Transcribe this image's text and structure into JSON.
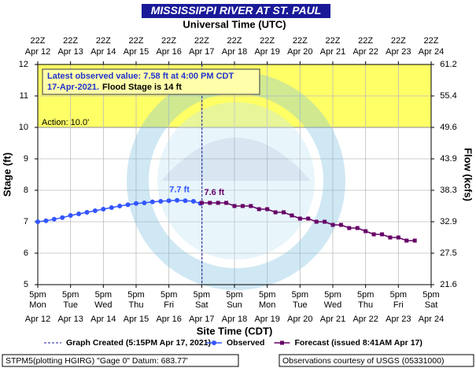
{
  "chart_data": {
    "type": "line",
    "title": "MISSISSIPPI RIVER AT ST. PAUL",
    "top_axis_label": "Universal Time (UTC)",
    "x_label": "Site Time (CDT)",
    "y_label": "Stage (ft)",
    "y2_label": "Flow (kcfs)",
    "xlim": [
      0,
      12
    ],
    "xticks": [
      {
        "value": 0,
        "label": "5pm"
      },
      {
        "value": 1,
        "label": "5pm"
      },
      {
        "value": 2,
        "label": "5pm"
      },
      {
        "value": 3,
        "label": "5pm"
      },
      {
        "value": 4,
        "label": "5pm"
      },
      {
        "value": 5,
        "label": "5pm"
      },
      {
        "value": 6,
        "label": "5pm"
      },
      {
        "value": 7,
        "label": "5pm"
      },
      {
        "value": 8,
        "label": "5pm"
      },
      {
        "value": 9,
        "label": "5pm"
      },
      {
        "value": 10,
        "label": "5pm"
      },
      {
        "value": 11,
        "label": "5pm"
      },
      {
        "value": 12,
        "label": "5pm"
      }
    ],
    "xtick_weekdays": [
      "Mon",
      "Tue",
      "Wed",
      "Thu",
      "Fri",
      "Sat",
      "Sun",
      "Mon",
      "Tue",
      "Wed",
      "Thu",
      "Fri",
      "Sat"
    ],
    "xtick_dates": [
      "Apr 12",
      "Apr 13",
      "Apr 14",
      "Apr 15",
      "Apr 16",
      "Apr 17",
      "Apr 18",
      "Apr 19",
      "Apr 20",
      "Apr 21",
      "Apr 22",
      "Apr 23",
      "Apr 24"
    ],
    "top_xticks": [
      "22Z",
      "22Z",
      "22Z",
      "22Z",
      "22Z",
      "22Z",
      "22Z",
      "22Z",
      "22Z",
      "22Z",
      "22Z",
      "22Z",
      "22Z"
    ],
    "ylim": [
      5,
      12
    ],
    "yticks": [
      5,
      6,
      7,
      8,
      9,
      10,
      11,
      12
    ],
    "y2ticks": [
      21.6,
      27.5,
      32.9,
      38.3,
      43.9,
      49.6,
      55.4,
      61.2
    ],
    "grid": true,
    "band": {
      "from": 10,
      "to": 12,
      "color": "#ffff66",
      "label": "Action: 10.0'"
    },
    "info_box": [
      "Latest observed value: 7.58 ft at 4:00 PM CDT",
      "17-Apr-2021.",
      "Flood Stage is 14 ft"
    ],
    "graph_created_x": 5.01,
    "series": [
      {
        "name": "Observed",
        "color": "#3355ff",
        "marker": "circle",
        "point_label": "7.7 ft",
        "x": [
          0,
          0.25,
          0.5,
          0.75,
          1,
          1.25,
          1.5,
          1.75,
          2,
          2.25,
          2.5,
          2.75,
          3,
          3.25,
          3.5,
          3.75,
          4,
          4.25,
          4.5,
          4.75,
          4.96
        ],
        "values": [
          7.0,
          7.03,
          7.08,
          7.13,
          7.2,
          7.25,
          7.3,
          7.35,
          7.4,
          7.45,
          7.5,
          7.54,
          7.58,
          7.6,
          7.63,
          7.65,
          7.67,
          7.68,
          7.67,
          7.65,
          7.58
        ]
      },
      {
        "name": "Forecast (issued 8:41AM Apr 17)",
        "color": "#660066",
        "marker": "square",
        "point_label": "7.6 ft",
        "x": [
          5,
          5.25,
          5.5,
          5.75,
          6,
          6.25,
          6.5,
          6.75,
          7,
          7.25,
          7.5,
          7.75,
          8,
          8.25,
          8.5,
          8.75,
          9,
          9.25,
          9.5,
          9.75,
          10,
          10.25,
          10.5,
          10.75,
          11,
          11.25,
          11.5
        ],
        "values": [
          7.6,
          7.6,
          7.6,
          7.6,
          7.5,
          7.5,
          7.5,
          7.4,
          7.4,
          7.3,
          7.3,
          7.2,
          7.1,
          7.1,
          7.0,
          7.0,
          6.9,
          6.9,
          6.8,
          6.8,
          6.7,
          6.6,
          6.6,
          6.5,
          6.5,
          6.4,
          6.4
        ]
      }
    ],
    "legend_created": "Graph Created (5:15PM Apr 17, 2021)",
    "footer_left": "STPM5(plotting HGIRG) \"Gage 0\" Datum: 683.77'",
    "footer_right": "Observations courtesy of USGS (05331000)"
  }
}
